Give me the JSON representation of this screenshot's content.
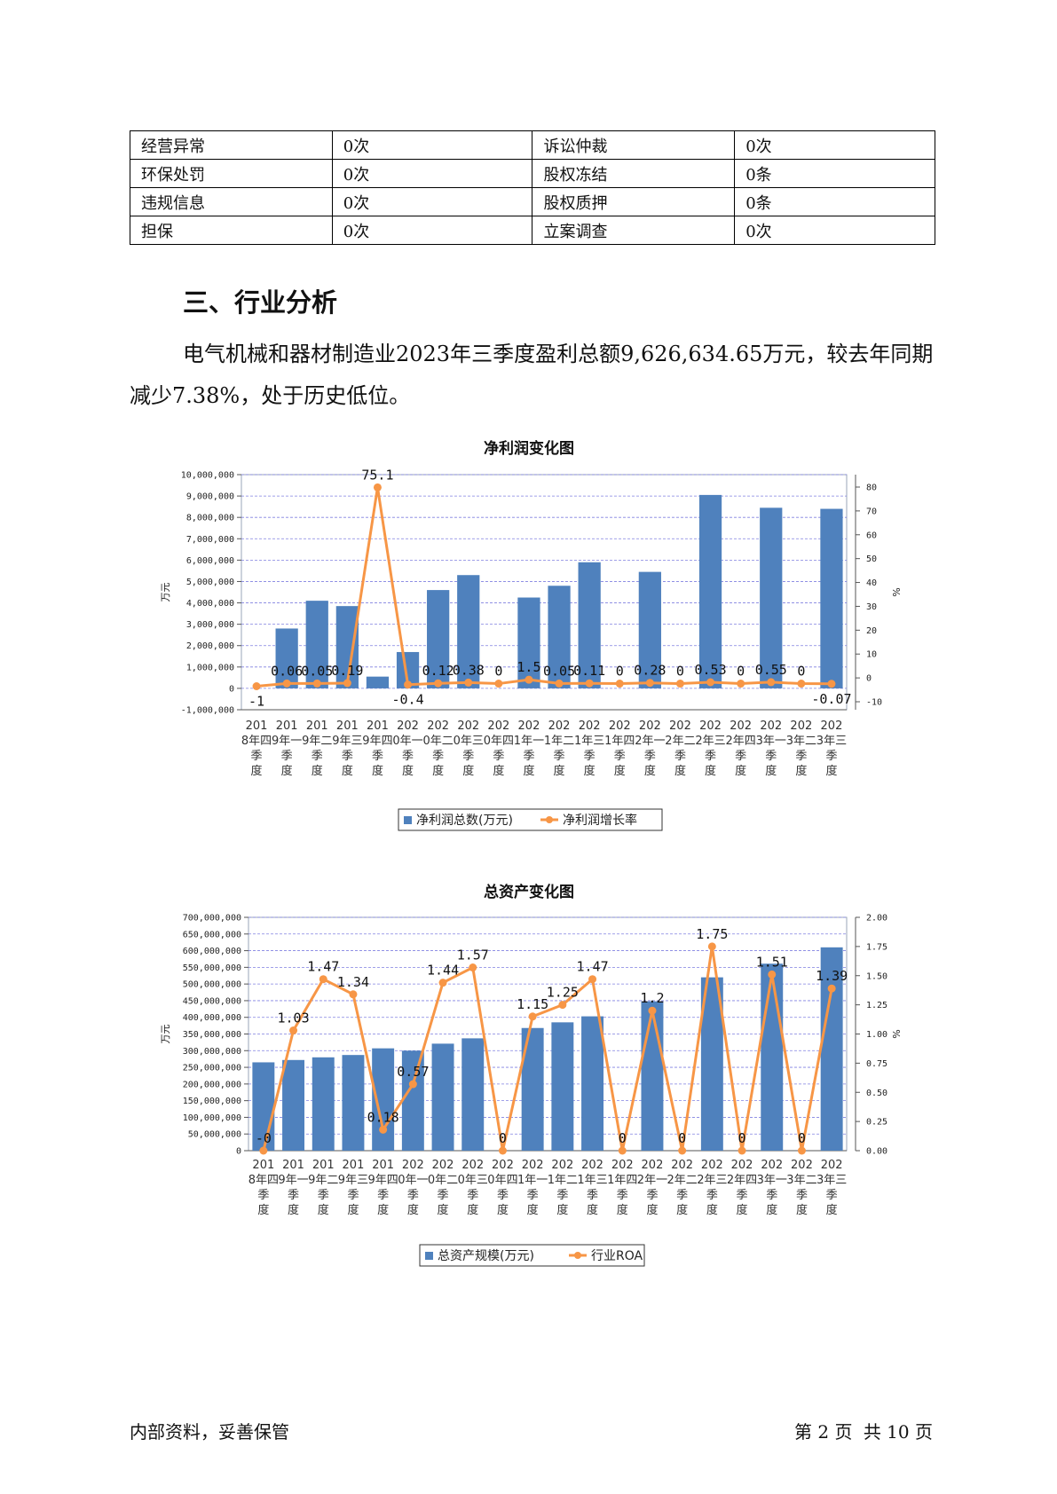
{
  "risk_table": [
    [
      "经营异常",
      "0次",
      "诉讼仲裁",
      "0次"
    ],
    [
      "环保处罚",
      "0次",
      "股权冻结",
      "0条"
    ],
    [
      "违规信息",
      "0次",
      "股权质押",
      "0条"
    ],
    [
      "担保",
      "0次",
      "立案调查",
      "0次"
    ]
  ],
  "section": {
    "title": "三、行业分析",
    "paragraph": "电气机械和器材制造业2023年三季度盈利总额9,626,634.65万元，较去年同期减少7.38%，处于历史低位。"
  },
  "footer": {
    "left": "内部资料，妥善保管",
    "page_label": "第 2 页",
    "total_label": "共 10 页"
  },
  "chart_data": [
    {
      "type": "bar+line",
      "title": "净利润变化图",
      "ylabel": "万元",
      "y2label": "%",
      "categories": [
        "2018年四季度",
        "2019年一季度",
        "2019年二季度",
        "2019年三季度",
        "2019年四季度",
        "2020年一季度",
        "2020年二季度",
        "2020年三季度",
        "2020年四季度",
        "2021年一季度",
        "2021年二季度",
        "2021年三季度",
        "2021年四季度",
        "2022年一季度",
        "2022年二季度",
        "2022年三季度",
        "2022年四季度",
        "2023年一季度",
        "2023年二季度",
        "2023年三季度"
      ],
      "ylim": [
        -1000000,
        10000000
      ],
      "yticks": [
        "10,000,000",
        "9,000,000",
        "8,000,000",
        "7,000,000",
        "6,000,000",
        "5,000,000",
        "4,000,000",
        "3,000,000",
        "2,000,000",
        "1,000,000",
        "0",
        "-1,000,000"
      ],
      "y2lim": [
        -10,
        80
      ],
      "y2ticks": [
        "80",
        "70",
        "60",
        "50",
        "40",
        "30",
        "20",
        "10",
        "0",
        "-10"
      ],
      "series": [
        {
          "name": "净利润总数(万元)",
          "kind": "bar",
          "color": "#4f81bd",
          "values": [
            0,
            2800000,
            4100000,
            3850000,
            550000,
            1700000,
            4600000,
            5300000,
            0,
            4250000,
            4800000,
            5900000,
            0,
            5450000,
            0,
            9050000,
            0,
            8450000,
            0,
            8400000
          ]
        },
        {
          "name": "净利润增长率",
          "kind": "line",
          "color": "#f79646",
          "values": [
            -1,
            0.06,
            0.05,
            0.19,
            75.1,
            -0.4,
            0.12,
            0.38,
            0,
            1.5,
            0.05,
            0.11,
            0,
            0.28,
            0,
            0.53,
            0,
            0.55,
            0,
            -0.07
          ],
          "labels": [
            "-1",
            "0.06",
            "0.05",
            "0.19",
            "75.1",
            "-0.4",
            "0.12",
            "0.38",
            "0",
            "1.5",
            "0.05",
            "0.11",
            "0",
            "0.28",
            "0",
            "0.53",
            "0",
            "0.55",
            "0",
            "-0.07"
          ]
        }
      ],
      "legend": "bottom"
    },
    {
      "type": "bar+line",
      "title": "总资产变化图",
      "ylabel": "万元",
      "y2label": "%",
      "categories": [
        "2018年四季度",
        "2019年一季度",
        "2019年二季度",
        "2019年三季度",
        "2019年四季度",
        "2020年一季度",
        "2020年二季度",
        "2020年三季度",
        "2020年四季度",
        "2021年一季度",
        "2021年二季度",
        "2021年三季度",
        "2021年四季度",
        "2022年一季度",
        "2022年二季度",
        "2022年三季度",
        "2022年四季度",
        "2023年一季度",
        "2023年二季度",
        "2023年三季度"
      ],
      "ylim": [
        0,
        700000000
      ],
      "yticks": [
        "700,000,000",
        "650,000,000",
        "600,000,000",
        "550,000,000",
        "500,000,000",
        "450,000,000",
        "400,000,000",
        "350,000,000",
        "300,000,000",
        "250,000,000",
        "200,000,000",
        "150,000,000",
        "100,000,000",
        "50,000,000",
        "0"
      ],
      "y2lim": [
        0,
        2
      ],
      "y2ticks": [
        "2.00",
        "1.75",
        "1.50",
        "1.25",
        "1.00",
        "0.75",
        "0.50",
        "0.25",
        "0.00"
      ],
      "series": [
        {
          "name": "总资产规模(万元)",
          "kind": "bar",
          "color": "#4f81bd",
          "values": [
            265000000,
            272000000,
            280000000,
            287000000,
            307000000,
            300000000,
            321000000,
            337000000,
            0,
            368000000,
            385000000,
            403000000,
            0,
            448000000,
            0,
            520000000,
            0,
            561000000,
            0,
            610000000
          ]
        },
        {
          "name": "行业ROA",
          "kind": "line",
          "color": "#f79646",
          "values": [
            0,
            1.03,
            1.47,
            1.34,
            0.18,
            0.57,
            1.44,
            1.57,
            0,
            1.15,
            1.25,
            1.47,
            0,
            1.2,
            0,
            1.75,
            0,
            1.51,
            0,
            1.39
          ],
          "labels": [
            "-0",
            "1.03",
            "1.47",
            "1.34",
            "0.18",
            "0.57",
            "1.44",
            "1.57",
            "0",
            "1.15",
            "1.25",
            "1.47",
            "0",
            "1.2",
            "0",
            "1.75",
            "0",
            "1.51",
            "0",
            "1.39"
          ]
        }
      ],
      "legend": "bottom"
    }
  ]
}
